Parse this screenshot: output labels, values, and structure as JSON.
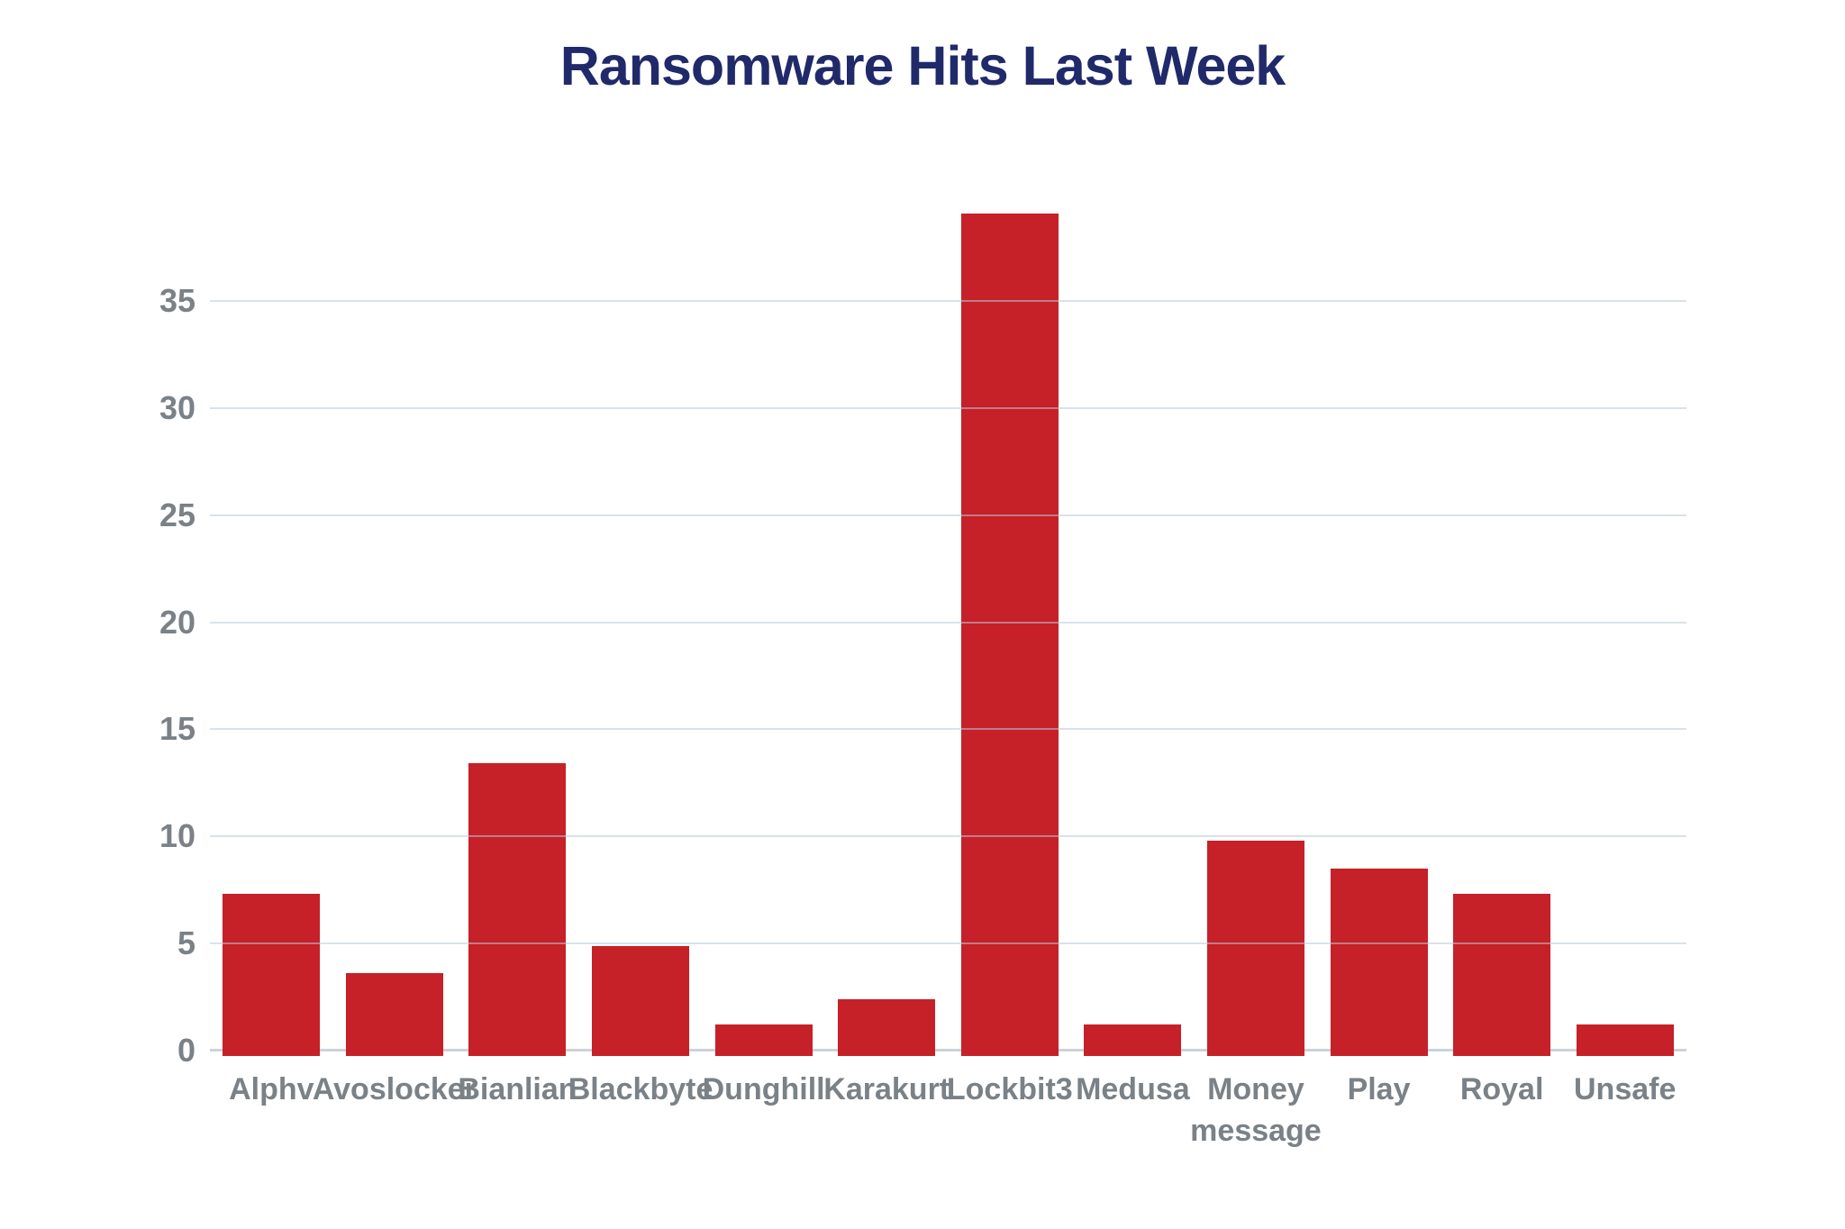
{
  "chart_data": {
    "type": "bar",
    "title": "Ransomware Hits Last Week",
    "xlabel": "",
    "ylabel": "",
    "categories": [
      "Alphv",
      "Avoslocker",
      "Bianlian",
      "Blackbyte",
      "Dunghill",
      "Karakurt",
      "Lockbit3",
      "Medusa",
      "Money message",
      "Play",
      "Royal",
      "Unsafe"
    ],
    "values": [
      7.3,
      3.6,
      13.4,
      4.9,
      1.2,
      2.4,
      39.1,
      1.2,
      9.8,
      8.5,
      7.3,
      1.2
    ],
    "yticks": [
      0,
      5,
      10,
      15,
      20,
      25,
      30,
      35
    ],
    "ylim": [
      0,
      40
    ],
    "grid": true,
    "legend": false,
    "colors": {
      "bar": "#C62028",
      "title": "#202A6A",
      "axis_labels": "#7A8187",
      "gridline_base": "#BACAD9",
      "gridline_alpha": 0.55,
      "zero_line": "#CBD3DA",
      "background": "#FFFFFF"
    }
  }
}
